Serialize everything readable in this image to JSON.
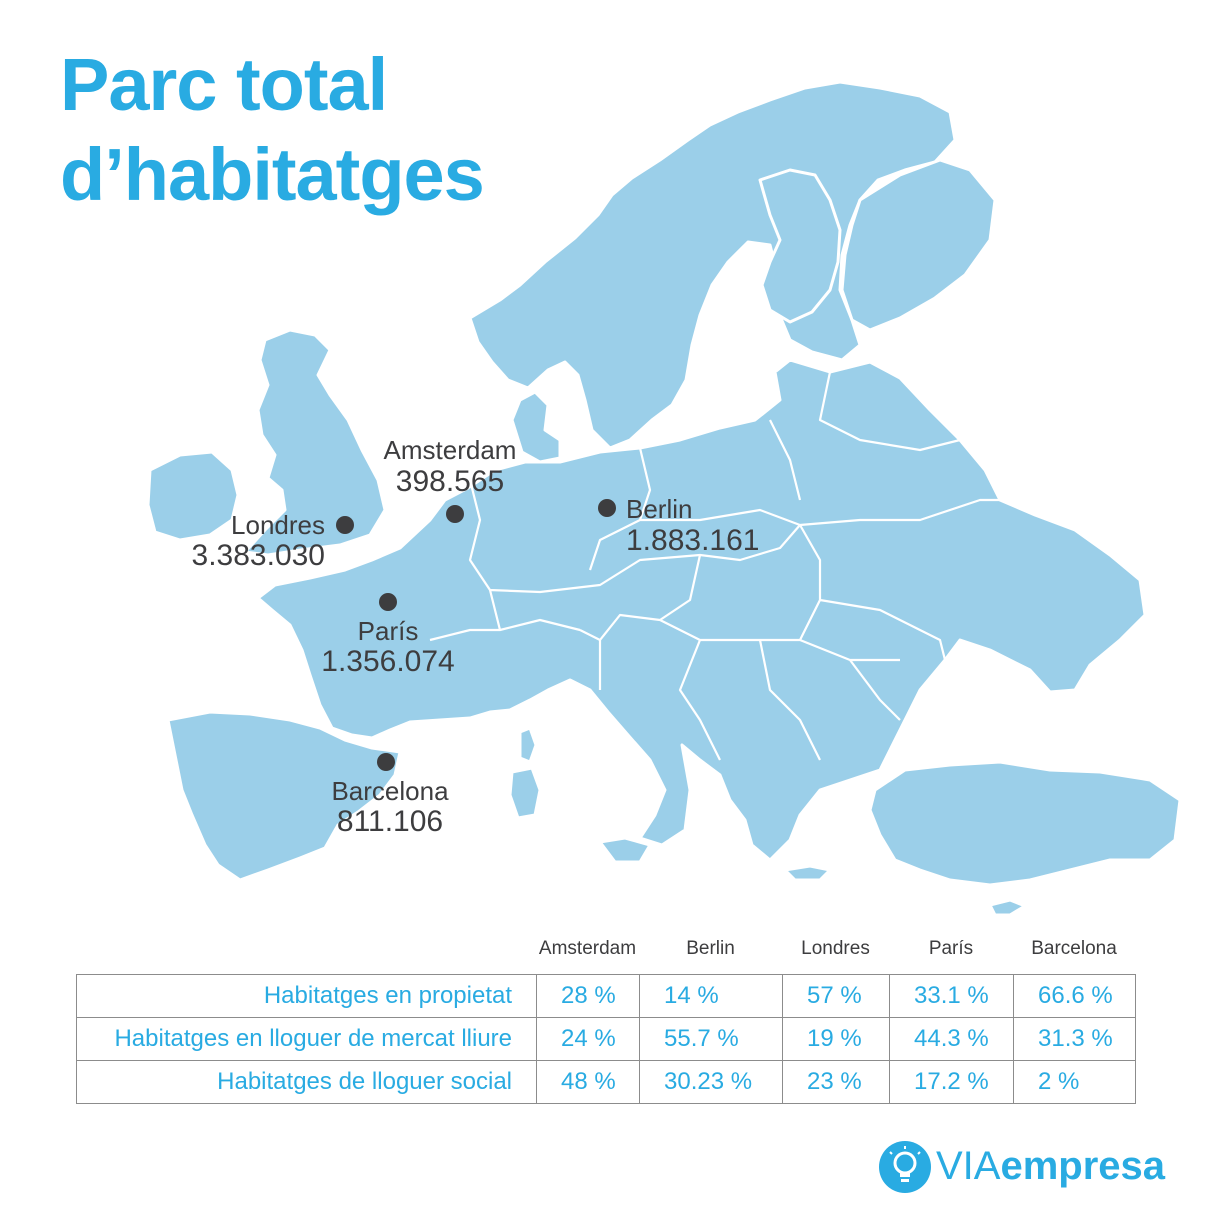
{
  "title": {
    "line1": "Parc total",
    "line2": "d’habitatges"
  },
  "map": {
    "land_color": "#9bcfe9",
    "cities": [
      {
        "id": "amsterdam",
        "name": "Amsterdam",
        "value": "398.565"
      },
      {
        "id": "berlin",
        "name": "Berlin",
        "value": "1.883.161"
      },
      {
        "id": "londres",
        "name": "Londres",
        "value": "3.383.030"
      },
      {
        "id": "paris",
        "name": "París",
        "value": "1.356.074"
      },
      {
        "id": "barcelona",
        "name": "Barcelona",
        "value": "811.106"
      }
    ]
  },
  "table": {
    "columns": [
      "Amsterdam",
      "Berlin",
      "Londres",
      "París",
      "Barcelona"
    ],
    "rows": [
      {
        "label": "Habitatges en propietat",
        "values": [
          "28 %",
          "14 %",
          "57 %",
          "33.1 %",
          "66.6 %"
        ]
      },
      {
        "label": "Habitatges en lloguer de mercat lliure",
        "values": [
          "24 %",
          "55.7 %",
          "19 %",
          "44.3 %",
          "31.3 %"
        ]
      },
      {
        "label": "Habitatges de lloguer social",
        "values": [
          "48 %",
          "30.23 %",
          "23 %",
          "17.2 %",
          "2 %"
        ]
      }
    ]
  },
  "logo": {
    "via": "VIA",
    "empresa": "empresa",
    "icon": "lightbulb-icon",
    "color": "#29abe2"
  }
}
